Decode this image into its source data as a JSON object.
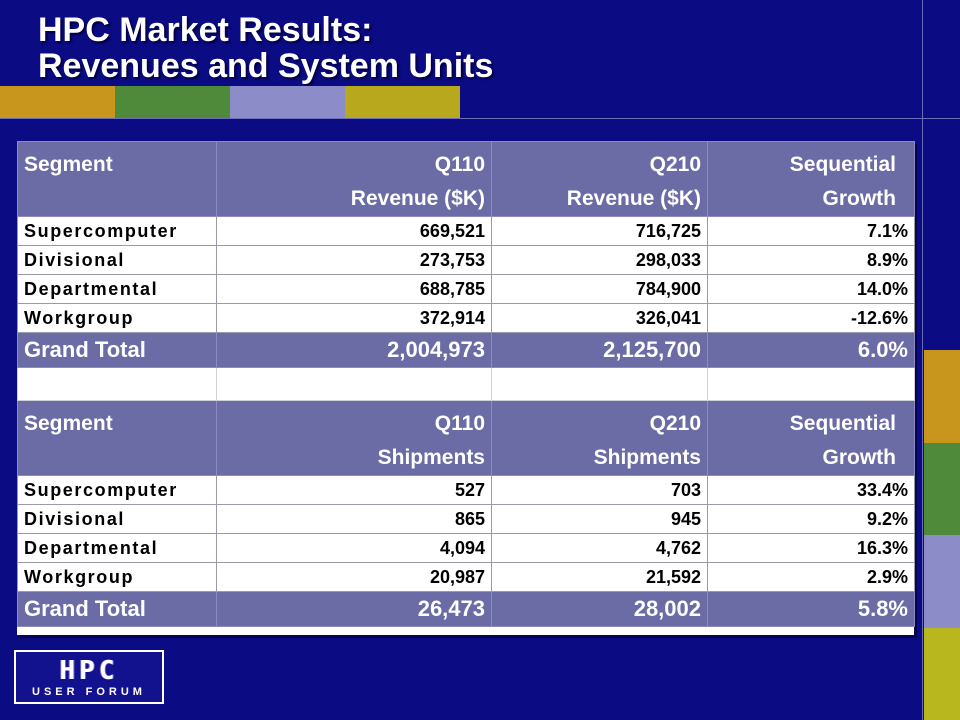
{
  "slide": {
    "title_line1": "HPC Market Results:",
    "title_line2": "Revenues and System Units"
  },
  "revenue_table": {
    "headers": {
      "segment": "Segment",
      "q110_line1": "Q110",
      "q110_line2": "Revenue ($K)",
      "q210_line1": "Q210",
      "q210_line2": "Revenue ($K)",
      "growth_line1": "Sequential",
      "growth_line2": "Growth"
    },
    "rows": [
      {
        "segment": "Supercomputer",
        "q110": "669,521",
        "q210": "716,725",
        "growth": "7.1%"
      },
      {
        "segment": "Divisional",
        "q110": "273,753",
        "q210": "298,033",
        "growth": "8.9%"
      },
      {
        "segment": "Departmental",
        "q110": "688,785",
        "q210": "784,900",
        "growth": "14.0%"
      },
      {
        "segment": "Workgroup",
        "q110": "372,914",
        "q210": "326,041",
        "growth": "-12.6%"
      }
    ],
    "total": {
      "segment": "Grand Total",
      "q110": "2,004,973",
      "q210": "2,125,700",
      "growth": "6.0%"
    }
  },
  "shipments_table": {
    "headers": {
      "segment": "Segment",
      "q110_line1": "Q110",
      "q110_line2": "Shipments",
      "q210_line1": "Q210",
      "q210_line2": "Shipments",
      "growth_line1": "Sequential",
      "growth_line2": "Growth"
    },
    "rows": [
      {
        "segment": "Supercomputer",
        "q110": "527",
        "q210": "703",
        "growth": "33.4%"
      },
      {
        "segment": "Divisional",
        "q110": "865",
        "q210": "945",
        "growth": "9.2%"
      },
      {
        "segment": "Departmental",
        "q110": "4,094",
        "q210": "4,762",
        "growth": "16.3%"
      },
      {
        "segment": "Workgroup",
        "q110": "20,987",
        "q210": "21,592",
        "growth": "2.9%"
      }
    ],
    "total": {
      "segment": "Grand Total",
      "q110": "26,473",
      "q210": "28,002",
      "growth": "5.8%"
    }
  },
  "logo": {
    "main": "HPC",
    "sub": "USER FORUM"
  },
  "colors": {
    "background": "#0b0b84",
    "header_fill": "#6b6ba6",
    "table_body": "#ffffff",
    "strip_top": [
      "#c8961c",
      "#4e8a3a",
      "#8c8cc8",
      "#b8a81e"
    ],
    "strip_right": [
      "#c8961c",
      "#4e8a3a",
      "#8c8cc8",
      "#b8b81e"
    ]
  }
}
